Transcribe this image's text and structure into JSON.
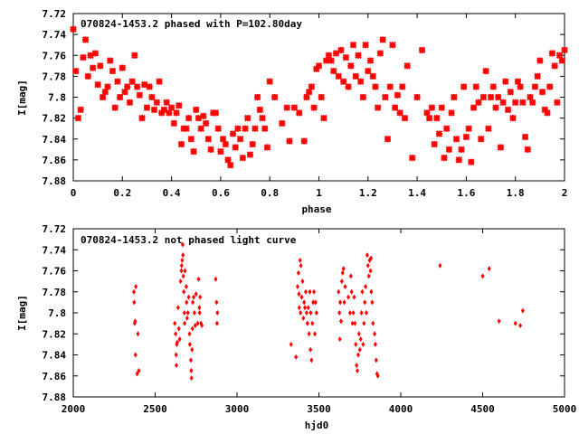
{
  "chart_data": [
    {
      "type": "scatter",
      "title": "070824-1453.2 phased with P=102.80day",
      "xlabel": "phase",
      "ylabel": "I[mag]",
      "xlim": [
        0,
        2
      ],
      "ylim": [
        7.88,
        7.72
      ],
      "y_inverted": true,
      "x_ticks": [
        "0",
        "0.2",
        "0.4",
        "0.6",
        "0.8",
        "1",
        "1.2",
        "1.4",
        "1.6",
        "1.8",
        "2"
      ],
      "y_ticks": [
        "7.72",
        "7.74",
        "7.76",
        "7.78",
        "7.8",
        "7.82",
        "7.84",
        "7.86",
        "7.88"
      ],
      "grid": false,
      "marker": "star",
      "color": "#ff0000",
      "points": [
        [
          0.0,
          7.735
        ],
        [
          0.01,
          7.775
        ],
        [
          0.02,
          7.82
        ],
        [
          0.03,
          7.812
        ],
        [
          0.04,
          7.762
        ],
        [
          0.05,
          7.745
        ],
        [
          0.06,
          7.78
        ],
        [
          0.07,
          7.76
        ],
        [
          0.08,
          7.772
        ],
        [
          0.09,
          7.758
        ],
        [
          0.1,
          7.788
        ],
        [
          0.11,
          7.77
        ],
        [
          0.12,
          7.8
        ],
        [
          0.13,
          7.795
        ],
        [
          0.14,
          7.79
        ],
        [
          0.15,
          7.765
        ],
        [
          0.16,
          7.775
        ],
        [
          0.17,
          7.81
        ],
        [
          0.18,
          7.785
        ],
        [
          0.19,
          7.8
        ],
        [
          0.2,
          7.772
        ],
        [
          0.21,
          7.795
        ],
        [
          0.22,
          7.79
        ],
        [
          0.23,
          7.805
        ],
        [
          0.24,
          7.785
        ],
        [
          0.25,
          7.76
        ],
        [
          0.26,
          7.79
        ],
        [
          0.27,
          7.798
        ],
        [
          0.28,
          7.82
        ],
        [
          0.29,
          7.788
        ],
        [
          0.3,
          7.81
        ],
        [
          0.31,
          7.79
        ],
        [
          0.32,
          7.8
        ],
        [
          0.33,
          7.812
        ],
        [
          0.34,
          7.805
        ],
        [
          0.35,
          7.785
        ],
        [
          0.36,
          7.815
        ],
        [
          0.37,
          7.812
        ],
        [
          0.38,
          7.805
        ],
        [
          0.39,
          7.815
        ],
        [
          0.4,
          7.81
        ],
        [
          0.41,
          7.825
        ],
        [
          0.42,
          7.815
        ],
        [
          0.43,
          7.808
        ],
        [
          0.44,
          7.845
        ],
        [
          0.45,
          7.83
        ],
        [
          0.46,
          7.83
        ],
        [
          0.47,
          7.82
        ],
        [
          0.48,
          7.84
        ],
        [
          0.49,
          7.852
        ],
        [
          0.5,
          7.812
        ],
        [
          0.51,
          7.82
        ],
        [
          0.52,
          7.83
        ],
        [
          0.53,
          7.818
        ],
        [
          0.54,
          7.825
        ],
        [
          0.55,
          7.84
        ],
        [
          0.56,
          7.85
        ],
        [
          0.57,
          7.815
        ],
        [
          0.58,
          7.815
        ],
        [
          0.59,
          7.83
        ],
        [
          0.6,
          7.852
        ],
        [
          0.61,
          7.84
        ],
        [
          0.62,
          7.845
        ],
        [
          0.63,
          7.86
        ],
        [
          0.64,
          7.865
        ],
        [
          0.65,
          7.835
        ],
        [
          0.66,
          7.848
        ],
        [
          0.67,
          7.83
        ],
        [
          0.68,
          7.84
        ],
        [
          0.69,
          7.858
        ],
        [
          0.7,
          7.83
        ],
        [
          0.71,
          7.82
        ],
        [
          0.72,
          7.855
        ],
        [
          0.73,
          7.845
        ],
        [
          0.74,
          7.83
        ],
        [
          0.75,
          7.8
        ],
        [
          0.76,
          7.812
        ],
        [
          0.77,
          7.82
        ],
        [
          0.78,
          7.83
        ],
        [
          0.79,
          7.848
        ],
        [
          0.8,
          7.785
        ],
        [
          0.82,
          7.8
        ],
        [
          0.85,
          7.825
        ],
        [
          0.87,
          7.81
        ],
        [
          0.88,
          7.842
        ],
        [
          0.9,
          7.81
        ],
        [
          0.92,
          7.815
        ],
        [
          0.94,
          7.842
        ],
        [
          0.95,
          7.8
        ],
        [
          0.96,
          7.795
        ],
        [
          0.97,
          7.79
        ],
        [
          0.98,
          7.81
        ],
        [
          0.99,
          7.773
        ],
        [
          1.0,
          7.77
        ],
        [
          1.01,
          7.8
        ],
        [
          1.02,
          7.82
        ],
        [
          1.03,
          7.765
        ],
        [
          1.04,
          7.76
        ],
        [
          1.05,
          7.765
        ],
        [
          1.06,
          7.775
        ],
        [
          1.07,
          7.758
        ],
        [
          1.08,
          7.78
        ],
        [
          1.09,
          7.755
        ],
        [
          1.1,
          7.785
        ],
        [
          1.11,
          7.762
        ],
        [
          1.12,
          7.79
        ],
        [
          1.13,
          7.77
        ],
        [
          1.14,
          7.75
        ],
        [
          1.15,
          7.78
        ],
        [
          1.16,
          7.76
        ],
        [
          1.17,
          7.785
        ],
        [
          1.18,
          7.8
        ],
        [
          1.19,
          7.75
        ],
        [
          1.2,
          7.775
        ],
        [
          1.21,
          7.765
        ],
        [
          1.22,
          7.78
        ],
        [
          1.23,
          7.79
        ],
        [
          1.24,
          7.81
        ],
        [
          1.25,
          7.758
        ],
        [
          1.26,
          7.745
        ],
        [
          1.27,
          7.8
        ],
        [
          1.28,
          7.84
        ],
        [
          1.29,
          7.79
        ],
        [
          1.3,
          7.75
        ],
        [
          1.31,
          7.81
        ],
        [
          1.32,
          7.798
        ],
        [
          1.33,
          7.815
        ],
        [
          1.34,
          7.79
        ],
        [
          1.35,
          7.82
        ],
        [
          1.36,
          7.77
        ],
        [
          1.38,
          7.858
        ],
        [
          1.4,
          7.8
        ],
        [
          1.42,
          7.755
        ],
        [
          1.44,
          7.815
        ],
        [
          1.45,
          7.82
        ],
        [
          1.46,
          7.81
        ],
        [
          1.47,
          7.845
        ],
        [
          1.48,
          7.82
        ],
        [
          1.49,
          7.835
        ],
        [
          1.5,
          7.81
        ],
        [
          1.51,
          7.858
        ],
        [
          1.52,
          7.83
        ],
        [
          1.53,
          7.85
        ],
        [
          1.54,
          7.815
        ],
        [
          1.55,
          7.8
        ],
        [
          1.56,
          7.84
        ],
        [
          1.57,
          7.86
        ],
        [
          1.58,
          7.85
        ],
        [
          1.59,
          7.79
        ],
        [
          1.6,
          7.838
        ],
        [
          1.61,
          7.83
        ],
        [
          1.62,
          7.862
        ],
        [
          1.63,
          7.81
        ],
        [
          1.64,
          7.79
        ],
        [
          1.65,
          7.805
        ],
        [
          1.66,
          7.84
        ],
        [
          1.67,
          7.8
        ],
        [
          1.68,
          7.775
        ],
        [
          1.69,
          7.83
        ],
        [
          1.7,
          7.8
        ],
        [
          1.71,
          7.79
        ],
        [
          1.72,
          7.81
        ],
        [
          1.73,
          7.8
        ],
        [
          1.74,
          7.848
        ],
        [
          1.75,
          7.805
        ],
        [
          1.76,
          7.785
        ],
        [
          1.77,
          7.812
        ],
        [
          1.78,
          7.795
        ],
        [
          1.79,
          7.82
        ],
        [
          1.8,
          7.805
        ],
        [
          1.81,
          7.785
        ],
        [
          1.82,
          7.79
        ],
        [
          1.83,
          7.805
        ],
        [
          1.84,
          7.838
        ],
        [
          1.85,
          7.85
        ],
        [
          1.86,
          7.8
        ],
        [
          1.87,
          7.805
        ],
        [
          1.88,
          7.79
        ],
        [
          1.89,
          7.78
        ],
        [
          1.9,
          7.765
        ],
        [
          1.91,
          7.795
        ],
        [
          1.92,
          7.812
        ],
        [
          1.93,
          7.815
        ],
        [
          1.94,
          7.79
        ],
        [
          1.95,
          7.758
        ],
        [
          1.96,
          7.77
        ],
        [
          1.97,
          7.805
        ],
        [
          1.98,
          7.76
        ],
        [
          1.99,
          7.765
        ],
        [
          2.0,
          7.755
        ]
      ]
    },
    {
      "type": "scatter",
      "title": "070824-1453.2 not phased light curve",
      "xlabel": "hjd0",
      "ylabel": "I[mag]",
      "xlim": [
        2000,
        5000
      ],
      "ylim": [
        7.88,
        7.72
      ],
      "y_inverted": true,
      "x_ticks": [
        "2000",
        "2500",
        "3000",
        "3500",
        "4000",
        "4500",
        "5000"
      ],
      "y_ticks": [
        "7.72",
        "7.74",
        "7.76",
        "7.78",
        "7.8",
        "7.82",
        "7.84",
        "7.86",
        "7.88"
      ],
      "grid": false,
      "marker": "diamond",
      "color": "#ff0000",
      "points": [
        [
          2370,
          7.78
        ],
        [
          2372,
          7.79
        ],
        [
          2375,
          7.81
        ],
        [
          2378,
          7.808
        ],
        [
          2380,
          7.84
        ],
        [
          2382,
          7.775
        ],
        [
          2390,
          7.858
        ],
        [
          2400,
          7.855
        ],
        [
          2395,
          7.82
        ],
        [
          2620,
          7.81
        ],
        [
          2625,
          7.82
        ],
        [
          2628,
          7.84
        ],
        [
          2630,
          7.85
        ],
        [
          2632,
          7.83
        ],
        [
          2635,
          7.828
        ],
        [
          2640,
          7.795
        ],
        [
          2645,
          7.815
        ],
        [
          2650,
          7.825
        ],
        [
          2655,
          7.77
        ],
        [
          2660,
          7.76
        ],
        [
          2662,
          7.755
        ],
        [
          2665,
          7.75
        ],
        [
          2668,
          7.735
        ],
        [
          2670,
          7.745
        ],
        [
          2672,
          7.765
        ],
        [
          2675,
          7.78
        ],
        [
          2678,
          7.8
        ],
        [
          2680,
          7.81
        ],
        [
          2682,
          7.76
        ],
        [
          2690,
          7.775
        ],
        [
          2692,
          7.79
        ],
        [
          2695,
          7.805
        ],
        [
          2700,
          7.8
        ],
        [
          2705,
          7.785
        ],
        [
          2710,
          7.82
        ],
        [
          2712,
          7.83
        ],
        [
          2718,
          7.845
        ],
        [
          2720,
          7.855
        ],
        [
          2722,
          7.862
        ],
        [
          2725,
          7.835
        ],
        [
          2728,
          7.815
        ],
        [
          2730,
          7.79
        ],
        [
          2735,
          7.785
        ],
        [
          2740,
          7.8
        ],
        [
          2745,
          7.812
        ],
        [
          2750,
          7.782
        ],
        [
          2760,
          7.81
        ],
        [
          2765,
          7.768
        ],
        [
          2770,
          7.795
        ],
        [
          2772,
          7.8
        ],
        [
          2775,
          7.785
        ],
        [
          2780,
          7.81
        ],
        [
          2785,
          7.812
        ],
        [
          2870,
          7.768
        ],
        [
          2875,
          7.79
        ],
        [
          2878,
          7.81
        ],
        [
          2880,
          7.8
        ],
        [
          3330,
          7.83
        ],
        [
          3360,
          7.842
        ],
        [
          3370,
          7.775
        ],
        [
          3375,
          7.762
        ],
        [
          3378,
          7.782
        ],
        [
          3380,
          7.795
        ],
        [
          3385,
          7.75
        ],
        [
          3388,
          7.8
        ],
        [
          3390,
          7.755
        ],
        [
          3395,
          7.785
        ],
        [
          3400,
          7.77
        ],
        [
          3405,
          7.805
        ],
        [
          3410,
          7.79
        ],
        [
          3415,
          7.795
        ],
        [
          3420,
          7.78
        ],
        [
          3425,
          7.8
        ],
        [
          3430,
          7.81
        ],
        [
          3435,
          7.795
        ],
        [
          3440,
          7.82
        ],
        [
          3445,
          7.78
        ],
        [
          3448,
          7.835
        ],
        [
          3450,
          7.8
        ],
        [
          3455,
          7.845
        ],
        [
          3460,
          7.81
        ],
        [
          3465,
          7.79
        ],
        [
          3470,
          7.78
        ],
        [
          3475,
          7.82
        ],
        [
          3480,
          7.79
        ],
        [
          3485,
          7.8
        ],
        [
          3620,
          7.78
        ],
        [
          3625,
          7.8
        ],
        [
          3628,
          7.825
        ],
        [
          3630,
          7.79
        ],
        [
          3635,
          7.808
        ],
        [
          3640,
          7.77
        ],
        [
          3645,
          7.762
        ],
        [
          3650,
          7.758
        ],
        [
          3655,
          7.79
        ],
        [
          3660,
          7.775
        ],
        [
          3680,
          7.785
        ],
        [
          3690,
          7.8
        ],
        [
          3695,
          7.765
        ],
        [
          3700,
          7.78
        ],
        [
          3705,
          7.81
        ],
        [
          3710,
          7.8
        ],
        [
          3715,
          7.785
        ],
        [
          3720,
          7.81
        ],
        [
          3725,
          7.83
        ],
        [
          3730,
          7.85
        ],
        [
          3735,
          7.855
        ],
        [
          3740,
          7.84
        ],
        [
          3745,
          7.82
        ],
        [
          3750,
          7.835
        ],
        [
          3755,
          7.825
        ],
        [
          3760,
          7.8
        ],
        [
          3765,
          7.78
        ],
        [
          3770,
          7.83
        ],
        [
          3775,
          7.81
        ],
        [
          3780,
          7.79
        ],
        [
          3785,
          7.775
        ],
        [
          3790,
          7.8
        ],
        [
          3795,
          7.745
        ],
        [
          3800,
          7.755
        ],
        [
          3805,
          7.765
        ],
        [
          3810,
          7.75
        ],
        [
          3815,
          7.76
        ],
        [
          3818,
          7.748
        ],
        [
          3820,
          7.78
        ],
        [
          3825,
          7.79
        ],
        [
          3830,
          7.81
        ],
        [
          3840,
          7.82
        ],
        [
          3845,
          7.83
        ],
        [
          3850,
          7.845
        ],
        [
          3855,
          7.858
        ],
        [
          3860,
          7.86
        ],
        [
          4240,
          7.755
        ],
        [
          4500,
          7.765
        ],
        [
          4540,
          7.758
        ],
        [
          4600,
          7.808
        ],
        [
          4700,
          7.81
        ],
        [
          4730,
          7.812
        ],
        [
          4745,
          7.798
        ]
      ]
    }
  ]
}
